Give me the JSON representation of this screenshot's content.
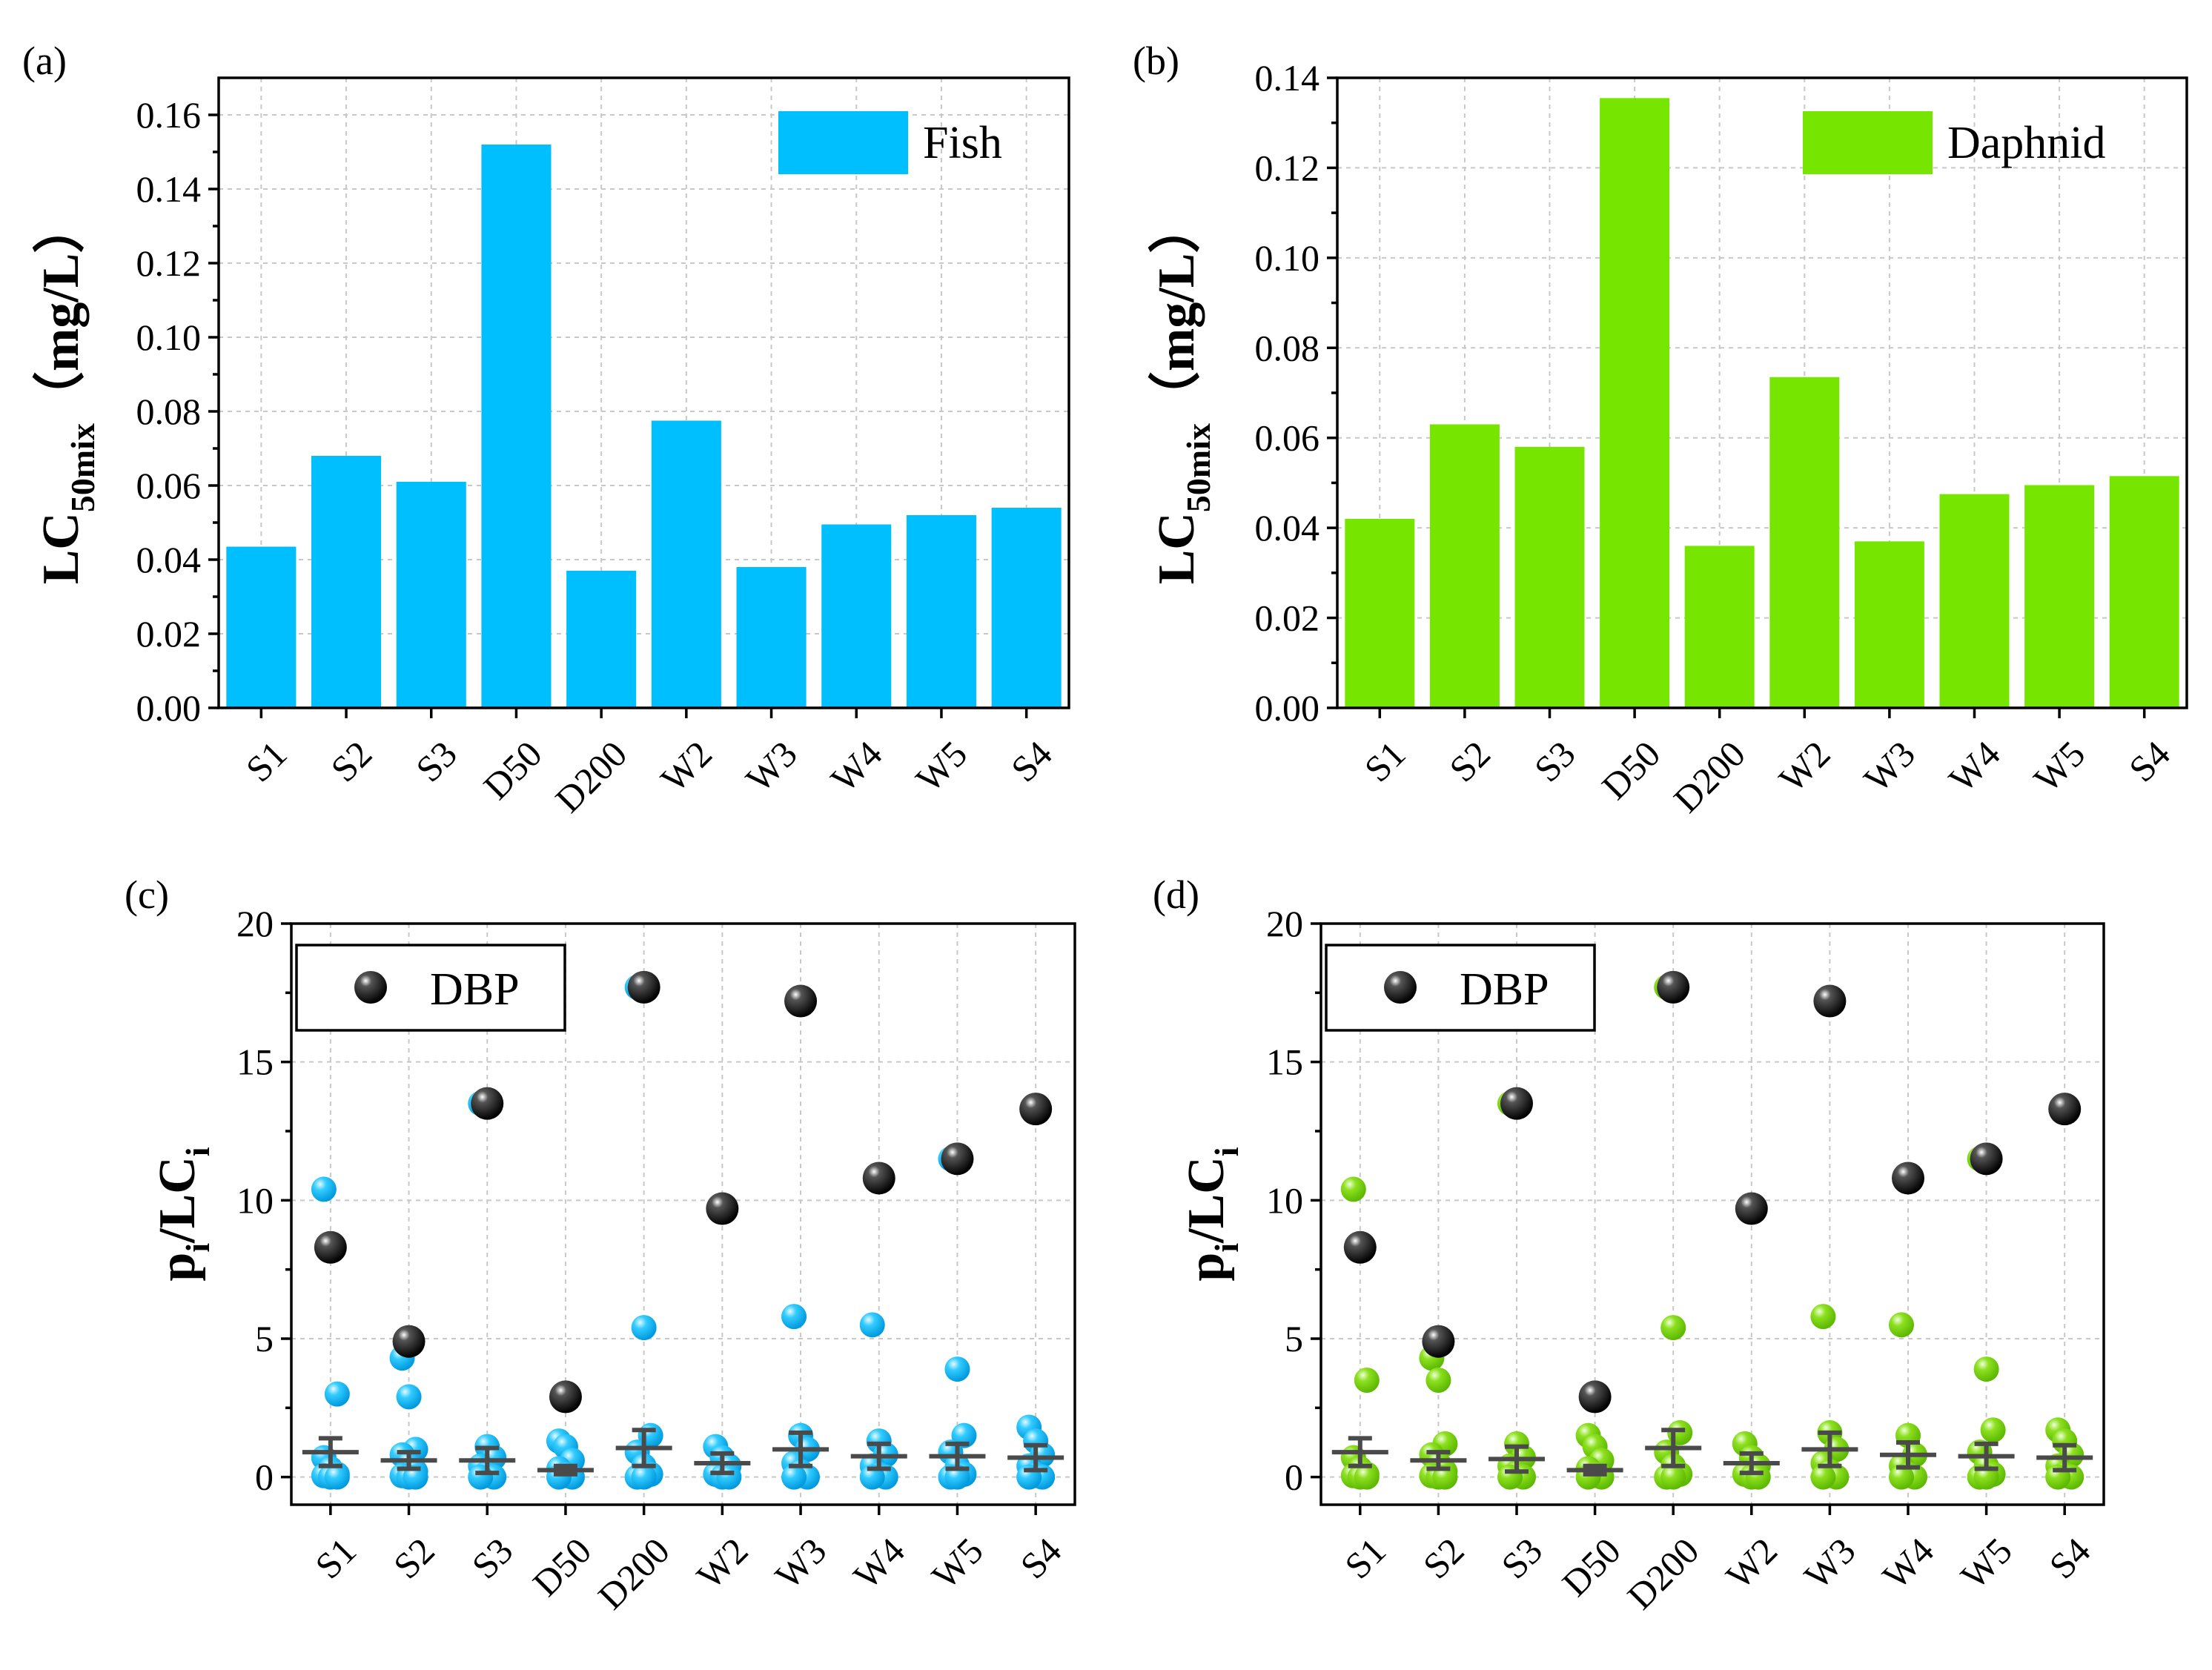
{
  "colors": {
    "fish": "#00bfff",
    "daphnid": "#76e600",
    "dbp": "#000000",
    "errbar": "#4a4a4a"
  },
  "chart_data": [
    {
      "panel": "(a)",
      "type": "bar",
      "categories": [
        "S1",
        "S2",
        "S3",
        "D50",
        "D200",
        "W2",
        "W3",
        "W4",
        "W5",
        "S4"
      ],
      "values": [
        0.0435,
        0.068,
        0.061,
        0.152,
        0.037,
        0.0775,
        0.038,
        0.0495,
        0.052,
        0.054
      ],
      "ylabel_main": "LC",
      "ylabel_sub": "50mix",
      "ylabel_unit": "（mg/L）",
      "ylim": [
        0,
        0.17
      ],
      "yticks": [
        "0.00",
        "0.02",
        "0.04",
        "0.06",
        "0.08",
        "0.10",
        "0.12",
        "0.14",
        "0.16"
      ],
      "legend": "Fish",
      "legend_position": "top-right",
      "grid": true
    },
    {
      "panel": "(b)",
      "type": "bar",
      "categories": [
        "S1",
        "S2",
        "S3",
        "D50",
        "D200",
        "W2",
        "W3",
        "W4",
        "W5",
        "S4"
      ],
      "values": [
        0.042,
        0.063,
        0.058,
        0.1355,
        0.036,
        0.0735,
        0.037,
        0.0475,
        0.0495,
        0.0515
      ],
      "ylabel_main": "LC",
      "ylabel_sub": "50mix",
      "ylabel_unit": "（mg/L）",
      "ylim": [
        0,
        0.14
      ],
      "yticks": [
        "0.00",
        "0.02",
        "0.04",
        "0.06",
        "0.08",
        "0.10",
        "0.12",
        "0.14"
      ],
      "legend": "Daphnid",
      "legend_position": "top-right",
      "grid": true
    },
    {
      "panel": "(c)",
      "type": "scatter",
      "categories": [
        "S1",
        "S2",
        "S3",
        "D50",
        "D200",
        "W2",
        "W3",
        "W4",
        "W5",
        "S4"
      ],
      "ylabel_main": "p",
      "ylabel_sub1": "i",
      "ylabel_mid": "/LC",
      "ylabel_sub2": "i",
      "ylim": [
        -1,
        20
      ],
      "yticks": [
        "0",
        "5",
        "10",
        "15",
        "20"
      ],
      "legend": "DBP",
      "legend_position": "top-left",
      "grid": true,
      "dbp": [
        8.3,
        4.9,
        13.5,
        2.9,
        17.7,
        9.7,
        17.2,
        10.8,
        11.5,
        13.3
      ],
      "mean": [
        0.9,
        0.6,
        0.6,
        0.25,
        1.05,
        0.5,
        1.0,
        0.75,
        0.75,
        0.7
      ],
      "err": [
        0.5,
        0.3,
        0.45,
        0.15,
        0.65,
        0.35,
        0.6,
        0.45,
        0.45,
        0.45
      ],
      "others": [
        [
          10.4,
          8.3,
          3.0,
          0.7,
          0.3,
          0.1,
          0.05,
          0.0,
          0.0
        ],
        [
          4.3,
          2.9,
          1.0,
          0.8,
          0.5,
          0.2,
          0.05,
          0.0,
          0.0
        ],
        [
          13.5,
          1.1,
          0.7,
          0.4,
          0.15,
          0.0,
          0.0
        ],
        [
          1.3,
          1.1,
          0.6,
          0.3,
          0.1,
          0.0,
          0.0
        ],
        [
          17.7,
          5.4,
          1.5,
          0.9,
          0.4,
          0.1,
          0.0,
          0.0
        ],
        [
          1.1,
          0.7,
          0.4,
          0.1,
          0.0,
          0.0
        ],
        [
          5.8,
          1.5,
          1.0,
          0.5,
          0.2,
          0.0,
          0.0
        ],
        [
          5.5,
          1.3,
          0.8,
          0.4,
          0.1,
          0.0,
          0.0
        ],
        [
          11.5,
          3.9,
          1.5,
          0.9,
          0.4,
          0.1,
          0.0,
          0.0
        ],
        [
          1.8,
          1.3,
          0.8,
          0.4,
          0.1,
          0.0,
          0.0
        ]
      ]
    },
    {
      "panel": "(d)",
      "type": "scatter",
      "categories": [
        "S1",
        "S2",
        "S3",
        "D50",
        "D200",
        "W2",
        "W3",
        "W4",
        "W5",
        "S4"
      ],
      "ylabel_main": "p",
      "ylabel_sub1": "i",
      "ylabel_mid": "/LC",
      "ylabel_sub2": "i",
      "ylim": [
        -1,
        20
      ],
      "yticks": [
        "0",
        "5",
        "10",
        "15",
        "20"
      ],
      "legend": "DBP",
      "legend_position": "top-left",
      "grid": true,
      "dbp": [
        8.3,
        4.9,
        13.5,
        2.9,
        17.7,
        9.7,
        17.2,
        10.8,
        11.5,
        13.3
      ],
      "mean": [
        0.9,
        0.6,
        0.65,
        0.25,
        1.05,
        0.5,
        1.0,
        0.8,
        0.75,
        0.7
      ],
      "err": [
        0.5,
        0.3,
        0.45,
        0.15,
        0.65,
        0.35,
        0.6,
        0.45,
        0.45,
        0.45
      ],
      "others": [
        [
          10.4,
          8.3,
          3.5,
          0.7,
          0.3,
          0.1,
          0.05,
          0.0,
          0.0
        ],
        [
          4.3,
          3.5,
          1.2,
          0.8,
          0.5,
          0.2,
          0.05,
          0.0,
          0.0
        ],
        [
          13.5,
          1.2,
          0.7,
          0.4,
          0.15,
          0.0,
          0.0
        ],
        [
          1.5,
          1.1,
          0.6,
          0.3,
          0.1,
          0.0,
          0.0
        ],
        [
          17.7,
          5.4,
          1.6,
          0.9,
          0.4,
          0.1,
          0.0,
          0.0
        ],
        [
          1.2,
          0.7,
          0.4,
          0.1,
          0.0,
          0.0
        ],
        [
          5.8,
          1.6,
          1.0,
          0.5,
          0.2,
          0.0,
          0.0
        ],
        [
          5.5,
          1.5,
          0.8,
          0.4,
          0.1,
          0.0,
          0.0
        ],
        [
          11.5,
          3.9,
          1.7,
          0.9,
          0.4,
          0.1,
          0.0,
          0.0
        ],
        [
          1.7,
          1.3,
          0.8,
          0.4,
          0.1,
          0.0,
          0.0
        ]
      ]
    }
  ]
}
